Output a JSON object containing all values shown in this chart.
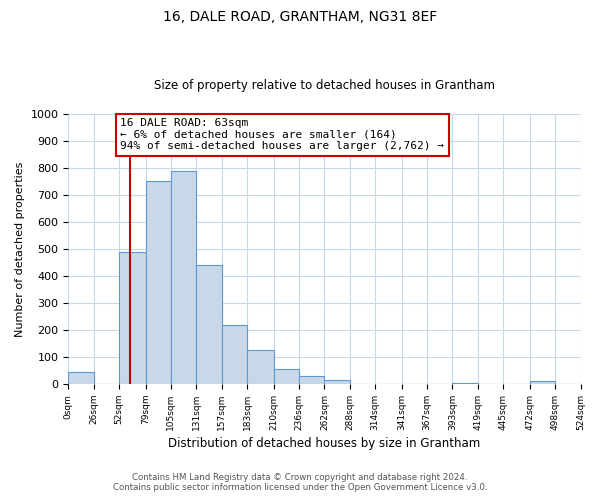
{
  "title": "16, DALE ROAD, GRANTHAM, NG31 8EF",
  "subtitle": "Size of property relative to detached houses in Grantham",
  "xlabel": "Distribution of detached houses by size in Grantham",
  "ylabel": "Number of detached properties",
  "bar_edges": [
    0,
    26,
    52,
    79,
    105,
    131,
    157,
    183,
    210,
    236,
    262,
    288,
    314,
    341,
    367,
    393,
    419,
    445,
    472,
    498,
    524
  ],
  "bar_heights": [
    45,
    0,
    490,
    750,
    790,
    440,
    220,
    125,
    55,
    30,
    15,
    0,
    0,
    0,
    0,
    5,
    0,
    0,
    10,
    0
  ],
  "bar_color": "#c8d8e8",
  "bar_edge_color": "#5b9bd5",
  "property_line_x": 63,
  "property_line_color": "#cc0000",
  "annotation_line1": "16 DALE ROAD: 63sqm",
  "annotation_line2": "← 6% of detached houses are smaller (164)",
  "annotation_line3": "94% of semi-detached houses are larger (2,762) →",
  "annotation_box_color": "#ffffff",
  "annotation_box_edge_color": "#cc0000",
  "ylim": [
    0,
    1000
  ],
  "tick_labels": [
    "0sqm",
    "26sqm",
    "52sqm",
    "79sqm",
    "105sqm",
    "131sqm",
    "157sqm",
    "183sqm",
    "210sqm",
    "236sqm",
    "262sqm",
    "288sqm",
    "314sqm",
    "341sqm",
    "367sqm",
    "393sqm",
    "419sqm",
    "445sqm",
    "472sqm",
    "498sqm",
    "524sqm"
  ],
  "footnote1": "Contains HM Land Registry data © Crown copyright and database right 2024.",
  "footnote2": "Contains public sector information licensed under the Open Government Licence v3.0.",
  "background_color": "#ffffff",
  "grid_color": "#c8d8e8",
  "title_fontsize": 10,
  "subtitle_fontsize": 8.5
}
